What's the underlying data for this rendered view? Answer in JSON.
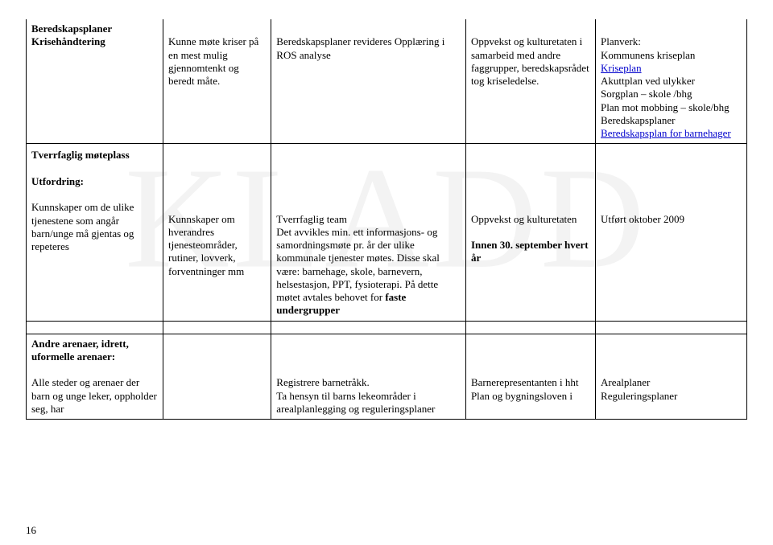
{
  "watermark": "KLADD",
  "page_number": "16",
  "rows": {
    "r1": {
      "c1a": "Beredskapsplaner",
      "c1b": "Krisehåndtering",
      "c2": "Kunne møte kriser på en mest mulig gjennomtenkt og beredt måte.",
      "c3": "Beredskapsplaner revideres Opplæring i ROS analyse",
      "c4": "Oppvekst og kulturetaten i samarbeid med andre faggrupper, beredskapsrådet tog kriseledelse.",
      "c5_pre": "Planverk:\nKommunens kriseplan",
      "c5_link": "Kriseplan",
      "c5_mid": "Akuttplan ved ulykker\nSorgplan – skole /bhg\nPlan mot mobbing – skole/bhg\nBeredskapsplaner",
      "c5_link2": "Beredskapsplan for barnehager"
    },
    "r2": {
      "tverr": "Tverrfaglig møteplass",
      "utfordring": "Utfordring:",
      "c1": "Kunnskaper om de ulike tjenestene som angår barn/unge må gjentas og repeteres",
      "c2": "Kunnskaper om hverandres tjenesteområder, rutiner, lovverk, forventninger mm",
      "c3a": "Tverrfaglig team",
      "c3b": "Det avvikles min. ett informasjons- og samordningsmøte pr. år der ulike kommunale tjenester møtes. Disse skal være: barnehage, skole, barnevern, helsestasjon, PPT, fysioterapi. På dette møtet avtales behovet for ",
      "c3c": "faste undergrupper",
      "c4a": "Oppvekst og kulturetaten",
      "c4b": "Innen 30. september hvert år",
      "c5": "Utført oktober 2009"
    },
    "r3": {
      "c1a": "Andre arenaer, idrett, uformelle arenaer:",
      "c1b": "Alle steder og arenaer der barn og unge leker, oppholder seg, har",
      "c3": "Registrere barnetråkk.\nTa hensyn til barns lekeområder i arealplanlegging og reguleringsplaner",
      "c4": "Barnerepresentanten i hht Plan og bygningsloven i",
      "c5": "Arealplaner\nReguleringsplaner"
    }
  }
}
